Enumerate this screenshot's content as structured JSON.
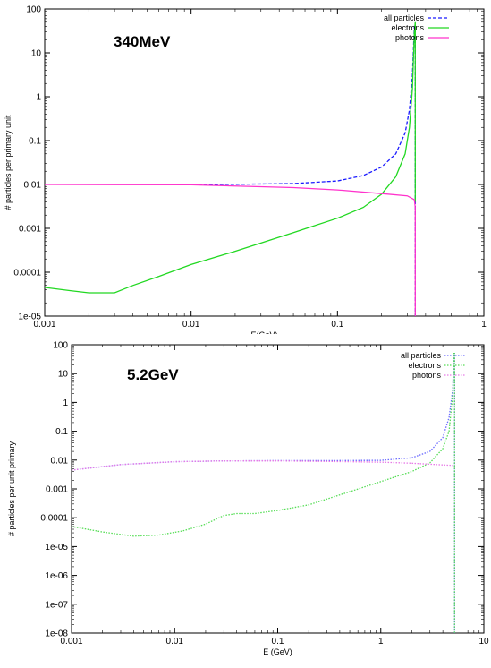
{
  "chart_data": [
    {
      "type": "line",
      "title": "340MeV",
      "xlabel": "E(GeV)",
      "ylabel": "# particles per primary unit",
      "xscale": "log",
      "yscale": "log",
      "xlim": [
        0.001,
        1
      ],
      "ylim": [
        1e-05,
        100
      ],
      "xticks": [
        "0.001",
        "0.01",
        "0.1",
        "1"
      ],
      "yticks": [
        "1e-05",
        "0.0001",
        "0.001",
        "0.01",
        "0.1",
        "1",
        "10",
        "100"
      ],
      "grid": false,
      "legend_position": "top-right",
      "series": [
        {
          "name": "all particles",
          "color": "#1a1aff",
          "style": "dashed",
          "points": [
            [
              0.008,
              0.01
            ],
            [
              0.02,
              0.0101
            ],
            [
              0.05,
              0.0105
            ],
            [
              0.1,
              0.012
            ],
            [
              0.15,
              0.016
            ],
            [
              0.2,
              0.025
            ],
            [
              0.25,
              0.05
            ],
            [
              0.29,
              0.15
            ],
            [
              0.31,
              0.5
            ],
            [
              0.325,
              3
            ],
            [
              0.335,
              40
            ],
            [
              0.34,
              40
            ],
            [
              0.34,
              0.004
            ],
            [
              0.34,
              1e-05
            ]
          ]
        },
        {
          "name": "electrons",
          "color": "#22d822",
          "style": "solid",
          "points": [
            [
              0.001,
              4.5e-05
            ],
            [
              0.0015,
              3.8e-05
            ],
            [
              0.002,
              3.4e-05
            ],
            [
              0.003,
              3.4e-05
            ],
            [
              0.004,
              5e-05
            ],
            [
              0.006,
              8e-05
            ],
            [
              0.01,
              0.00015
            ],
            [
              0.02,
              0.0003
            ],
            [
              0.05,
              0.0008
            ],
            [
              0.1,
              0.0017
            ],
            [
              0.15,
              0.003
            ],
            [
              0.2,
              0.006
            ],
            [
              0.25,
              0.015
            ],
            [
              0.29,
              0.05
            ],
            [
              0.31,
              0.2
            ],
            [
              0.325,
              1.5
            ],
            [
              0.335,
              30
            ],
            [
              0.34,
              50
            ],
            [
              0.34,
              0.004
            ]
          ]
        },
        {
          "name": "photons",
          "color": "#ff33cc",
          "style": "solid",
          "points": [
            [
              0.001,
              0.01
            ],
            [
              0.01,
              0.0098
            ],
            [
              0.05,
              0.0085
            ],
            [
              0.1,
              0.0075
            ],
            [
              0.2,
              0.0062
            ],
            [
              0.3,
              0.0055
            ],
            [
              0.335,
              0.0045
            ],
            [
              0.34,
              0.003
            ],
            [
              0.34,
              1e-05
            ]
          ]
        }
      ]
    },
    {
      "type": "line",
      "title": "5.2GeV",
      "xlabel": "E (GeV)",
      "ylabel": "# particles per unit primary",
      "xscale": "log",
      "yscale": "log",
      "xlim": [
        0.001,
        10
      ],
      "ylim": [
        1e-08,
        100
      ],
      "xticks": [
        "0.001",
        "0.01",
        "0.1",
        "1",
        "10"
      ],
      "yticks": [
        "1e-08",
        "1e-07",
        "1e-06",
        "1e-05",
        "0.0001",
        "0.001",
        "0.01",
        "0.1",
        "1",
        "10",
        "100"
      ],
      "grid": false,
      "legend_position": "top-right",
      "series": [
        {
          "name": "all particles",
          "color": "#6a6aff",
          "style": "dotted",
          "points": [
            [
              0.001,
              0.0045
            ],
            [
              0.003,
              0.007
            ],
            [
              0.01,
              0.0088
            ],
            [
              0.03,
              0.0094
            ],
            [
              0.1,
              0.0096
            ],
            [
              0.3,
              0.0096
            ],
            [
              1,
              0.0098
            ],
            [
              2,
              0.012
            ],
            [
              3,
              0.02
            ],
            [
              4,
              0.06
            ],
            [
              4.6,
              0.3
            ],
            [
              5,
              3
            ],
            [
              5.1,
              50
            ],
            [
              5.2,
              50
            ],
            [
              5.2,
              1e-08
            ]
          ]
        },
        {
          "name": "electrons",
          "color": "#55dd55",
          "style": "dotted",
          "points": [
            [
              0.001,
              5e-05
            ],
            [
              0.002,
              3.2e-05
            ],
            [
              0.004,
              2.3e-05
            ],
            [
              0.007,
              2.5e-05
            ],
            [
              0.012,
              3.5e-05
            ],
            [
              0.02,
              6e-05
            ],
            [
              0.03,
              0.00012
            ],
            [
              0.04,
              0.00014
            ],
            [
              0.06,
              0.00014
            ],
            [
              0.1,
              0.00018
            ],
            [
              0.2,
              0.00028
            ],
            [
              0.5,
              0.0008
            ],
            [
              1,
              0.0018
            ],
            [
              2,
              0.004
            ],
            [
              3,
              0.008
            ],
            [
              4,
              0.025
            ],
            [
              4.6,
              0.1
            ],
            [
              5,
              2
            ],
            [
              5.1,
              50
            ],
            [
              5.2,
              50
            ],
            [
              5.2,
              1e-08
            ]
          ]
        },
        {
          "name": "photons",
          "color": "#e77ae7",
          "style": "dotted",
          "points": [
            [
              0.001,
              0.0045
            ],
            [
              0.003,
              0.007
            ],
            [
              0.01,
              0.0088
            ],
            [
              0.03,
              0.0094
            ],
            [
              0.1,
              0.0094
            ],
            [
              0.3,
              0.009
            ],
            [
              1,
              0.0085
            ],
            [
              2,
              0.0078
            ],
            [
              3,
              0.0072
            ],
            [
              4,
              0.0068
            ],
            [
              5.2,
              0.0065
            ]
          ]
        }
      ]
    }
  ]
}
